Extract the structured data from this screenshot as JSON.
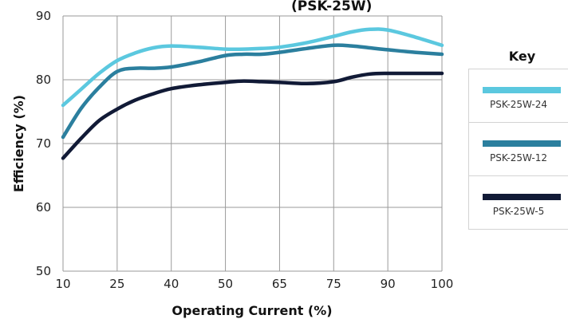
{
  "chart_data": {
    "type": "line",
    "title_partial": "(PSK-25W)",
    "xlabel": "Operating Current  (%)",
    "ylabel": "Efficiency (%)",
    "x_ticks": [
      "10",
      "25",
      "40",
      "50",
      "65",
      "75",
      "90",
      "100"
    ],
    "y_ticks": [
      "50",
      "60",
      "70",
      "80",
      "90"
    ],
    "ylim": [
      50,
      90
    ],
    "grid": true,
    "legend_title": "Key",
    "legend_position": "right",
    "series": [
      {
        "name": "PSK-25W-24",
        "color": "#5bc8df",
        "points": [
          [
            10,
            76
          ],
          [
            15,
            78.5
          ],
          [
            20,
            81
          ],
          [
            25,
            83
          ],
          [
            30,
            84.2
          ],
          [
            35,
            85
          ],
          [
            40,
            85.3
          ],
          [
            45,
            85.1
          ],
          [
            50,
            84.8
          ],
          [
            55,
            84.8
          ],
          [
            60,
            84.9
          ],
          [
            65,
            85.1
          ],
          [
            70,
            85.8
          ],
          [
            75,
            86.8
          ],
          [
            80,
            87.5
          ],
          [
            85,
            87.9
          ],
          [
            90,
            87.8
          ],
          [
            95,
            86.7
          ],
          [
            100,
            85.4
          ]
        ]
      },
      {
        "name": "PSK-25W-12",
        "color": "#2b7f9e",
        "points": [
          [
            10,
            71
          ],
          [
            15,
            75.5
          ],
          [
            20,
            78.8
          ],
          [
            25,
            81.3
          ],
          [
            30,
            81.8
          ],
          [
            35,
            81.8
          ],
          [
            40,
            82
          ],
          [
            45,
            82.8
          ],
          [
            50,
            83.8
          ],
          [
            55,
            84
          ],
          [
            60,
            84
          ],
          [
            65,
            84.3
          ],
          [
            70,
            84.9
          ],
          [
            75,
            85.4
          ],
          [
            80,
            85.3
          ],
          [
            85,
            85
          ],
          [
            90,
            84.7
          ],
          [
            95,
            84.3
          ],
          [
            100,
            84
          ]
        ]
      },
      {
        "name": "PSK-25W-5",
        "color": "#111a36",
        "points": [
          [
            10,
            67.7
          ],
          [
            15,
            70.8
          ],
          [
            20,
            73.6
          ],
          [
            25,
            75.4
          ],
          [
            30,
            76.8
          ],
          [
            35,
            77.8
          ],
          [
            40,
            78.6
          ],
          [
            45,
            79.2
          ],
          [
            50,
            79.6
          ],
          [
            55,
            79.8
          ],
          [
            60,
            79.7
          ],
          [
            65,
            79.6
          ],
          [
            70,
            79.4
          ],
          [
            75,
            79.7
          ],
          [
            80,
            80.4
          ],
          [
            85,
            80.9
          ],
          [
            90,
            81
          ],
          [
            95,
            81
          ],
          [
            100,
            81
          ]
        ]
      }
    ]
  }
}
